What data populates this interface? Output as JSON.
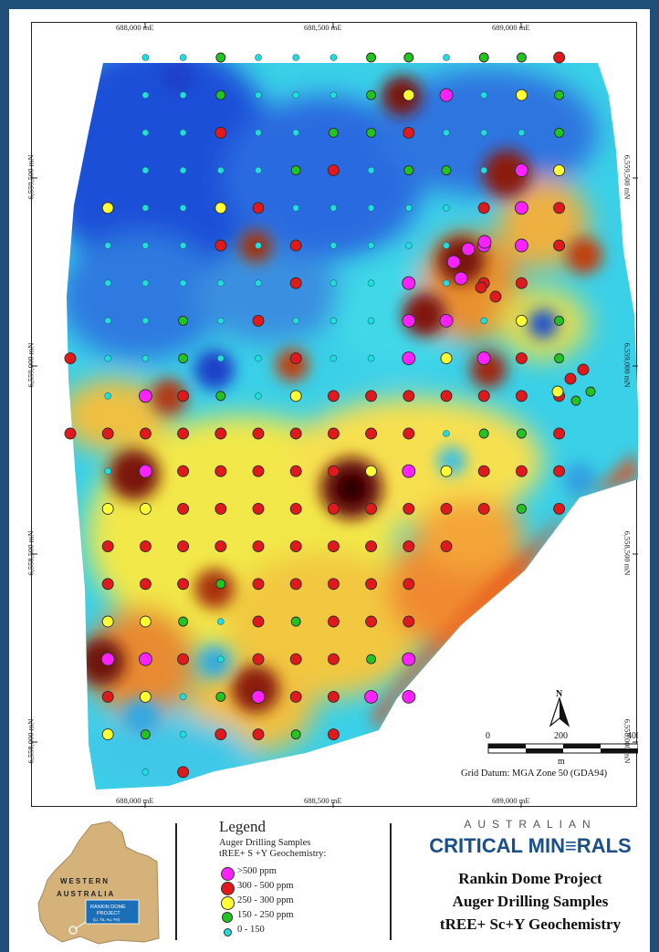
{
  "map": {
    "top_coords": [
      "688,000 mE",
      "688,500 mE",
      "689,000 mE"
    ],
    "bottom_coords": [
      "688,000 mE",
      "688,500 mE",
      "689,000 mE"
    ],
    "left_coords": [
      "6,559,500 mN",
      "6,559,000 mN",
      "6,558,500 mN",
      "6,558,000 mN"
    ],
    "right_coords": [
      "6,559,500 mN",
      "6,559,000 mN",
      "6,558,500 mN",
      "6,558,000 mN"
    ],
    "north_label": "N",
    "scale_labels": [
      "0",
      "200",
      "400"
    ],
    "scale_unit": "m",
    "datum": "Grid Datum: MGA Zone 50 (GDA94)"
  },
  "legend": {
    "title": "Legend",
    "subtitle_1": "Auger Drilling Samples",
    "subtitle_2": "tREE+ S +Y Geochemistry:",
    "classes": [
      {
        "label": ">500 ppm",
        "color": "#ff22ff",
        "size": "large"
      },
      {
        "label": "300 - 500 ppm",
        "color": "#e0191c",
        "size": "large"
      },
      {
        "label": "250 - 300 ppm",
        "color": "#ffff33",
        "size": "large"
      },
      {
        "label": "150 - 250 ppm",
        "color": "#22c422",
        "size": "medium"
      },
      {
        "label": "0 - 150",
        "color": "#22dddd",
        "size": "small"
      }
    ]
  },
  "locator": {
    "line1": "WESTERN",
    "line2": "AUSTRALIA",
    "box_line1": "RANKIN DOME",
    "box_line2": "PROJECT",
    "box_line3": "(Li, Ta, Au, Fe)"
  },
  "brand": {
    "australian": "AUSTRALIAN",
    "critical_minerals": "CRITICAL MIN≡RALS",
    "project_line1": "Rankin Dome Project",
    "project_line2": "Auger Drilling Samples",
    "project_line3": "tREE+ Sc+Y Geochemistry"
  },
  "colors": {
    "magenta": "#ff22ff",
    "red": "#e0191c",
    "yellow": "#ffff33",
    "green": "#22c422",
    "cyan": "#22dddd",
    "brand_blue": "#1a4f8a"
  }
}
